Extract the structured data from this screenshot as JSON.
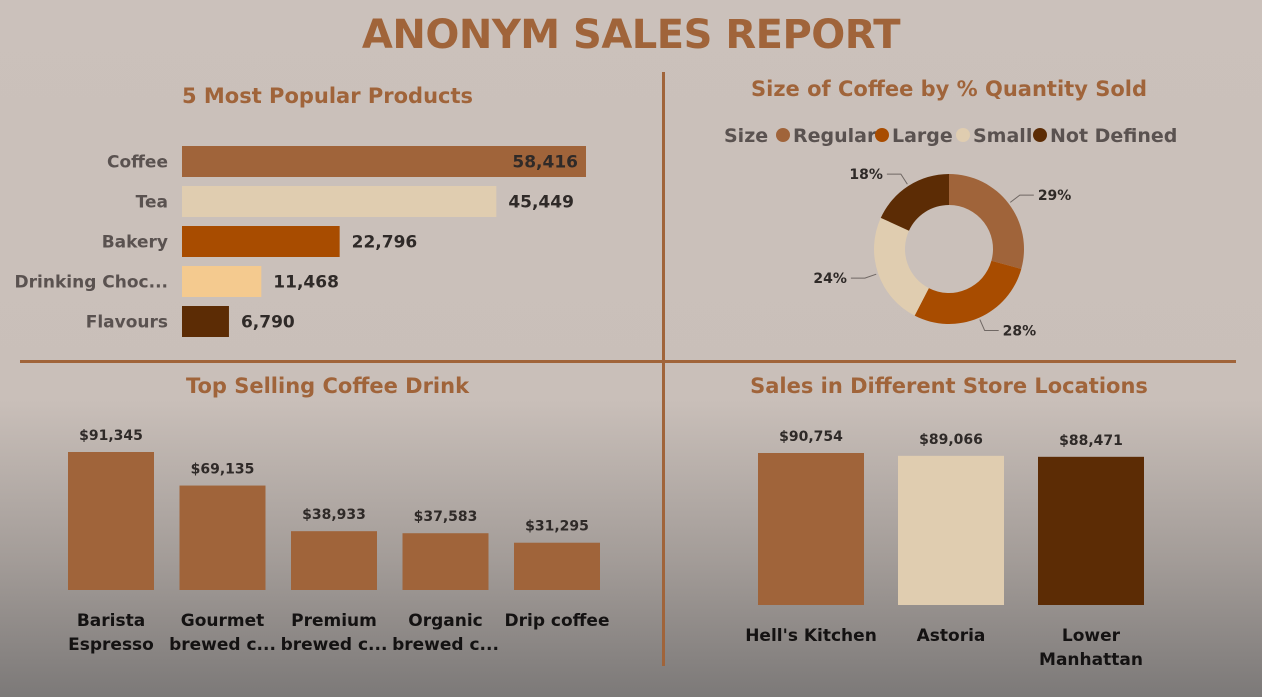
{
  "report": {
    "title": "ANONYM SALES REPORT"
  },
  "chart_data": [
    {
      "type": "bar",
      "orientation": "horizontal",
      "title": "5 Most Popular Products",
      "categories": [
        "Coffee",
        "Tea",
        "Bakery",
        "Drinking Choc...",
        "Flavours"
      ],
      "values": [
        58416,
        45449,
        22796,
        11468,
        6790
      ],
      "data_labels": [
        "58,416",
        "45,449",
        "22,796",
        "11,468",
        "6,790"
      ],
      "colors": [
        "#a0643a",
        "#e0cdb0",
        "#a84c00",
        "#f4ca8f",
        "#5c2c05"
      ],
      "xlim": [
        0,
        58416
      ]
    },
    {
      "type": "pie",
      "variant": "donut",
      "title": "Size of Coffee by % Quantity Sold",
      "legend_title": "Size",
      "legend_position": "top",
      "categories": [
        "Regular",
        "Large",
        "Small",
        "Not Defined"
      ],
      "values": [
        29,
        28,
        24,
        18
      ],
      "data_labels": [
        "29%",
        "28%",
        "24%",
        "18%"
      ],
      "colors": [
        "#a0643a",
        "#a84c00",
        "#e0cdb0",
        "#5c2c05"
      ]
    },
    {
      "type": "bar",
      "title": "Top Selling Coffee Drink",
      "categories": [
        [
          "Barista",
          "Espresso"
        ],
        [
          "Gourmet",
          "brewed c..."
        ],
        [
          "Premium",
          "brewed c..."
        ],
        [
          "Organic",
          "brewed c..."
        ],
        [
          "Drip coffee"
        ]
      ],
      "values": [
        91345,
        69135,
        38933,
        37583,
        31295
      ],
      "data_labels": [
        "$91,345",
        "$69,135",
        "$38,933",
        "$37,583",
        "$31,295"
      ],
      "color": "#a0643a",
      "ylim": [
        0,
        91345
      ]
    },
    {
      "type": "bar",
      "title": "Sales in Different Store Locations",
      "categories": [
        [
          "Hell's Kitchen"
        ],
        [
          "Astoria"
        ],
        [
          "Lower",
          "Manhattan"
        ]
      ],
      "values": [
        90754,
        89066,
        88471
      ],
      "data_labels": [
        "$90,754",
        "$89,066",
        "$88,471"
      ],
      "colors": [
        "#a0643a",
        "#e0cdb0",
        "#5c2c05"
      ]
    }
  ]
}
